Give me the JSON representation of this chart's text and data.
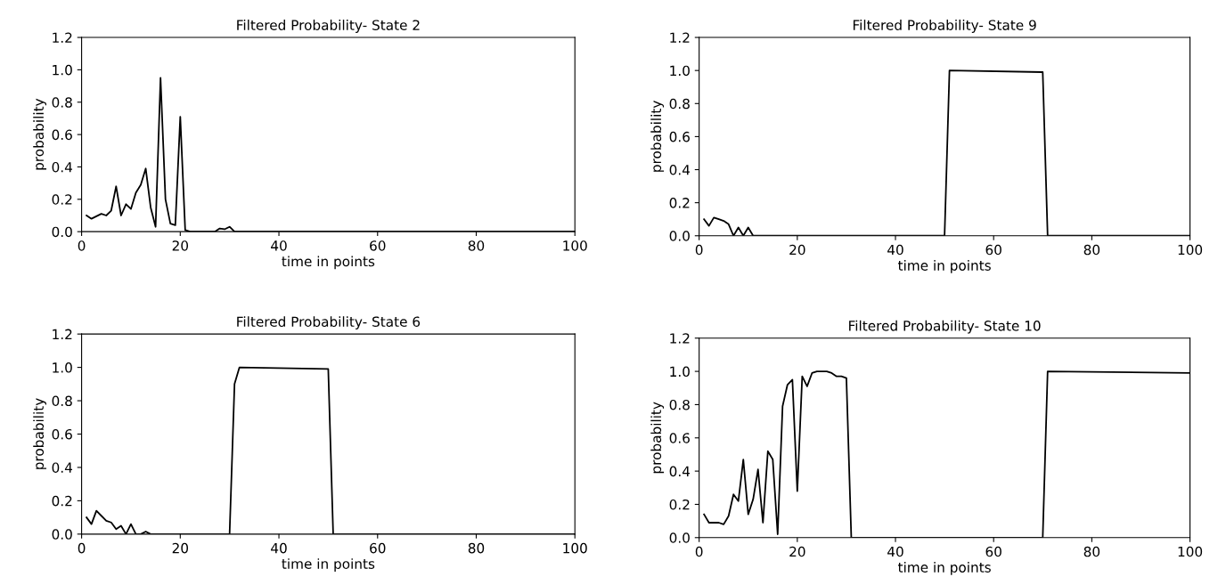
{
  "chart_data": [
    {
      "type": "line",
      "title": "Filtered Probability- State 2",
      "xlabel": "time in points",
      "ylabel": "probability",
      "xlim": [
        0,
        100
      ],
      "ylim": [
        0,
        1.2
      ],
      "xticks": [
        0,
        20,
        40,
        60,
        80,
        100
      ],
      "yticks": [
        {
          "value": 0,
          "label": "0.0"
        },
        {
          "value": 0.2,
          "label": "0.2"
        },
        {
          "value": 0.4,
          "label": "0.4"
        },
        {
          "value": 0.6,
          "label": "0.6"
        },
        {
          "value": 0.8,
          "label": "0.8"
        },
        {
          "value": 1,
          "label": "1.0"
        },
        {
          "value": 1.2,
          "label": "1.2"
        }
      ],
      "grid": false,
      "marker": "none",
      "line_style": "solid",
      "series": [
        {
          "color": "#000000",
          "x": [
            1,
            2,
            4,
            5,
            6,
            7,
            8,
            9,
            10,
            11,
            12,
            13,
            14,
            15,
            16,
            17,
            18,
            19,
            20,
            21,
            22,
            27,
            28,
            29,
            30,
            31,
            100
          ],
          "values": [
            0.1,
            0.08,
            0.11,
            0.1,
            0.13,
            0.28,
            0.1,
            0.17,
            0.14,
            0.24,
            0.29,
            0.39,
            0.15,
            0.03,
            0.95,
            0.2,
            0.05,
            0.04,
            0.71,
            0.01,
            0,
            0,
            0.02,
            0.015,
            0.03,
            0,
            0
          ]
        }
      ]
    },
    {
      "type": "line",
      "title": "Filtered Probability- State 9",
      "xlabel": "time in points",
      "ylabel": "probability",
      "xlim": [
        0,
        100
      ],
      "ylim": [
        0,
        1.2
      ],
      "xticks": [
        0,
        20,
        40,
        60,
        80,
        100
      ],
      "yticks": [
        {
          "value": 0,
          "label": "0.0"
        },
        {
          "value": 0.2,
          "label": "0.2"
        },
        {
          "value": 0.4,
          "label": "0.4"
        },
        {
          "value": 0.6,
          "label": "0.6"
        },
        {
          "value": 0.8,
          "label": "0.8"
        },
        {
          "value": 1,
          "label": "1.0"
        },
        {
          "value": 1.2,
          "label": "1.2"
        }
      ],
      "grid": false,
      "marker": "none",
      "line_style": "solid",
      "series": [
        {
          "color": "#000000",
          "x": [
            1,
            2,
            3,
            4,
            5,
            6,
            7,
            8,
            9,
            10,
            11,
            50,
            51,
            70,
            71,
            100
          ],
          "values": [
            0.1,
            0.06,
            0.11,
            0.1,
            0.09,
            0.07,
            0,
            0.05,
            0,
            0.05,
            0,
            0,
            1.0,
            0.99,
            0,
            0
          ]
        }
      ]
    },
    {
      "type": "line",
      "title": "Filtered Probability- State 6",
      "xlabel": "time in points",
      "ylabel": "probability",
      "xlim": [
        0,
        100
      ],
      "ylim": [
        0,
        1.2
      ],
      "xticks": [
        0,
        20,
        40,
        60,
        80,
        100
      ],
      "yticks": [
        {
          "value": 0,
          "label": "0.0"
        },
        {
          "value": 0.2,
          "label": "0.2"
        },
        {
          "value": 0.4,
          "label": "0.4"
        },
        {
          "value": 0.6,
          "label": "0.6"
        },
        {
          "value": 0.8,
          "label": "0.8"
        },
        {
          "value": 1,
          "label": "1.0"
        },
        {
          "value": 1.2,
          "label": "1.2"
        }
      ],
      "grid": false,
      "marker": "none",
      "line_style": "solid",
      "series": [
        {
          "color": "#000000",
          "x": [
            1,
            2,
            3,
            4,
            5,
            6,
            7,
            8,
            9,
            10,
            11,
            12,
            13,
            14,
            30,
            31,
            32,
            50,
            51,
            100
          ],
          "values": [
            0.1,
            0.06,
            0.14,
            0.11,
            0.08,
            0.07,
            0.03,
            0.05,
            0,
            0.06,
            0,
            0,
            0.015,
            0,
            0,
            0.9,
            1.0,
            0.99,
            0,
            0
          ]
        }
      ]
    },
    {
      "type": "line",
      "title": "Filtered Probability- State 10",
      "xlabel": "time in points",
      "ylabel": "probability",
      "xlim": [
        0,
        100
      ],
      "ylim": [
        0,
        1.2
      ],
      "xticks": [
        0,
        20,
        40,
        60,
        80,
        100
      ],
      "yticks": [
        {
          "value": 0,
          "label": "0.0"
        },
        {
          "value": 0.2,
          "label": "0.2"
        },
        {
          "value": 0.4,
          "label": "0.4"
        },
        {
          "value": 0.6,
          "label": "0.6"
        },
        {
          "value": 0.8,
          "label": "0.8"
        },
        {
          "value": 1,
          "label": "1.0"
        },
        {
          "value": 1.2,
          "label": "1.2"
        }
      ],
      "grid": false,
      "marker": "none",
      "line_style": "solid",
      "series": [
        {
          "color": "#000000",
          "x": [
            1,
            2,
            3,
            4,
            5,
            6,
            7,
            8,
            9,
            10,
            11,
            12,
            13,
            14,
            15,
            16,
            17,
            18,
            19,
            20,
            21,
            22,
            23,
            24,
            25,
            26,
            27,
            28,
            29,
            30,
            31,
            70,
            71,
            100
          ],
          "values": [
            0.14,
            0.09,
            0.09,
            0.09,
            0.08,
            0.13,
            0.26,
            0.22,
            0.47,
            0.14,
            0.23,
            0.41,
            0.09,
            0.52,
            0.47,
            0.02,
            0.79,
            0.92,
            0.95,
            0.28,
            0.97,
            0.91,
            0.99,
            1.0,
            1.0,
            1.0,
            0.99,
            0.97,
            0.97,
            0.96,
            0,
            0,
            1.0,
            0.99
          ]
        }
      ]
    }
  ]
}
